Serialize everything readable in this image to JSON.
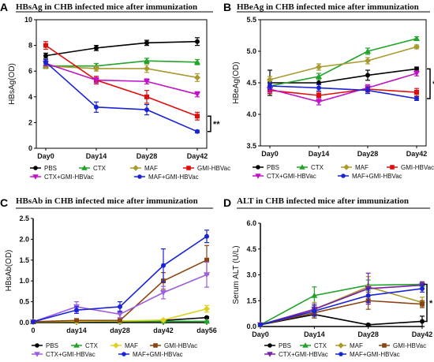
{
  "chart_data": [
    {
      "letter": "A",
      "type": "line",
      "title": "HBsAg in CHB infected mice after immunization",
      "ylabel": "HBsAg(OD)",
      "categories": [
        "Day0",
        "Day14",
        "Day28",
        "Day42"
      ],
      "yticks": [
        "0",
        "2",
        "4",
        "6",
        "8",
        "10"
      ],
      "ylim": [
        0,
        10
      ],
      "significance": "**",
      "series": [
        {
          "name": "PBS",
          "color": "#000000",
          "marker": "circle",
          "values": [
            7.2,
            7.8,
            8.2,
            8.3
          ],
          "err": [
            0.2,
            0.2,
            0.2,
            0.3
          ]
        },
        {
          "name": "CTX",
          "color": "#22a32a",
          "marker": "triangle",
          "values": [
            6.4,
            6.4,
            6.8,
            6.7
          ],
          "err": [
            0.2,
            0.2,
            0.2,
            0.2
          ]
        },
        {
          "name": "MAF",
          "color": "#a89a2e",
          "marker": "diamond",
          "values": [
            6.4,
            6.2,
            6.2,
            5.5
          ],
          "err": [
            0.2,
            0.2,
            0.3,
            0.3
          ]
        },
        {
          "name": "GMI-HBVac",
          "color": "#e00d0d",
          "marker": "square",
          "values": [
            8.0,
            5.3,
            4.0,
            2.5
          ],
          "err": [
            0.3,
            0.3,
            0.5,
            0.3
          ]
        },
        {
          "name": "CTX+GMI-HBVac",
          "color": "#c013c7",
          "marker": "triangle-down",
          "values": [
            6.6,
            5.3,
            5.2,
            4.2
          ],
          "err": [
            0.2,
            0.2,
            0.2,
            0.2
          ]
        },
        {
          "name": "MAF+GMI-HBVac",
          "color": "#1a23d6",
          "marker": "circle",
          "values": [
            6.7,
            3.2,
            3.0,
            1.3
          ],
          "err": [
            0.2,
            0.4,
            0.4,
            0.1
          ]
        }
      ]
    },
    {
      "letter": "B",
      "type": "line",
      "title": "HBeAg in CHB infected mice after immunization",
      "ylabel": "HBeAg(OD)",
      "categories": [
        "Day0",
        "Day14",
        "Day28",
        "Day42"
      ],
      "yticks": [
        "3.5",
        "4.0",
        "4.5",
        "5.0",
        "5.5"
      ],
      "ylim": [
        3.5,
        5.5
      ],
      "significance": "*",
      "series": [
        {
          "name": "PBS",
          "color": "#000000",
          "marker": "circle",
          "values": [
            4.5,
            4.5,
            4.62,
            4.72
          ],
          "err": [
            0.2,
            0.08,
            0.08,
            0.03
          ]
        },
        {
          "name": "CTX",
          "color": "#22a32a",
          "marker": "triangle",
          "values": [
            4.45,
            4.6,
            5.0,
            5.2
          ],
          "err": [
            0.05,
            0.05,
            0.05,
            0.03
          ]
        },
        {
          "name": "MAF",
          "color": "#a89a2e",
          "marker": "diamond",
          "values": [
            4.55,
            4.75,
            4.85,
            5.07
          ],
          "err": [
            0.05,
            0.05,
            0.05,
            0.03
          ]
        },
        {
          "name": "GMI-HBVac",
          "color": "#e00d0d",
          "marker": "square",
          "values": [
            4.38,
            4.3,
            4.4,
            4.35
          ],
          "err": [
            0.05,
            0.05,
            0.05,
            0.06
          ]
        },
        {
          "name": "CTX+GMI-HBVac",
          "color": "#c013c7",
          "marker": "triangle-down",
          "values": [
            4.4,
            4.2,
            4.42,
            4.65
          ],
          "err": [
            0.05,
            0.05,
            0.05,
            0.04
          ]
        },
        {
          "name": "MAF+GMI-HBVac",
          "color": "#1a23d6",
          "marker": "circle",
          "values": [
            4.45,
            4.42,
            4.38,
            4.25
          ],
          "err": [
            0.05,
            0.05,
            0.05,
            0.03
          ]
        }
      ]
    },
    {
      "letter": "C",
      "type": "line",
      "title": "HBsAb in CHB infected mice after immunization",
      "ylabel": "HBsAb(OD)",
      "categories": [
        "0",
        "day14",
        "day28",
        "day42",
        "day56"
      ],
      "yticks": [
        "0.0",
        "0.5",
        "1.0",
        "1.5",
        "2.0",
        "2.5"
      ],
      "ylim": [
        0,
        2.5
      ],
      "significance": "",
      "series": [
        {
          "name": "PBS",
          "color": "#000000",
          "marker": "circle",
          "values": [
            0.02,
            0.03,
            0.03,
            0.05,
            0.12
          ],
          "err": [
            0.01,
            0.01,
            0.01,
            0.01,
            0.02
          ]
        },
        {
          "name": "CTX",
          "color": "#22a32a",
          "marker": "triangle",
          "values": [
            0.02,
            0.03,
            0.03,
            0.03,
            0.03
          ],
          "err": [
            0.01,
            0.01,
            0.01,
            0.01,
            0.01
          ]
        },
        {
          "name": "MAF",
          "color": "#e0d020",
          "marker": "diamond",
          "values": [
            0.02,
            0.03,
            0.04,
            0.06,
            0.33
          ],
          "err": [
            0.01,
            0.01,
            0.01,
            0.02,
            0.08
          ]
        },
        {
          "name": "GMI-HBVac",
          "color": "#8b4513",
          "marker": "square",
          "values": [
            0.02,
            0.05,
            0.05,
            1.0,
            1.5
          ],
          "err": [
            0.01,
            0.02,
            0.02,
            0.2,
            0.35
          ]
        },
        {
          "name": "CTX+GMI-HBVac",
          "color": "#9b5fe0",
          "marker": "triangle-down",
          "values": [
            0.02,
            0.38,
            0.2,
            0.72,
            1.15
          ],
          "err": [
            0.01,
            0.12,
            0.08,
            0.15,
            0.3
          ]
        },
        {
          "name": "MAF+GMI-HBVac",
          "color": "#1a23d6",
          "marker": "circle",
          "values": [
            0.02,
            0.3,
            0.38,
            1.37,
            2.07
          ],
          "err": [
            0.01,
            0.08,
            0.12,
            0.4,
            0.15
          ]
        }
      ]
    },
    {
      "letter": "D",
      "type": "line",
      "title": "ALT in CHB infected mice after immunization",
      "ylabel": "Serum ALT (U/L)",
      "categories": [
        "Day0",
        "Day14",
        "Day28",
        "Day42"
      ],
      "yticks": [
        "0.0",
        "1.5",
        "3.0",
        "4.5",
        "6.0"
      ],
      "ylim": [
        0,
        6
      ],
      "significance": "*",
      "series": [
        {
          "name": "PBS",
          "color": "#000000",
          "marker": "circle",
          "values": [
            0.1,
            0.7,
            0.1,
            0.3
          ],
          "err": [
            0.05,
            0.2,
            0.05,
            0.3
          ]
        },
        {
          "name": "CTX",
          "color": "#22a32a",
          "marker": "triangle",
          "values": [
            0.1,
            1.8,
            2.4,
            2.45
          ],
          "err": [
            0.05,
            0.5,
            0.3,
            0.1
          ]
        },
        {
          "name": "MAF",
          "color": "#a89a2e",
          "marker": "diamond",
          "values": [
            0.1,
            1.0,
            2.3,
            1.4
          ],
          "err": [
            0.05,
            0.4,
            0.6,
            0.3
          ]
        },
        {
          "name": "GMI-HBVac",
          "color": "#8b4513",
          "marker": "square",
          "values": [
            0.1,
            0.8,
            1.5,
            1.3
          ],
          "err": [
            0.05,
            0.3,
            0.5,
            0.2
          ]
        },
        {
          "name": "CTX+GMI-HBVac",
          "color": "#7b1fa2",
          "marker": "triangle-down",
          "values": [
            0.1,
            1.0,
            2.2,
            2.4
          ],
          "err": [
            0.05,
            0.3,
            0.9,
            0.2
          ]
        },
        {
          "name": "MAF+GMI-HBVac",
          "color": "#1a23d6",
          "marker": "circle",
          "values": [
            0.1,
            0.9,
            1.8,
            2.2
          ],
          "err": [
            0.05,
            0.3,
            0.4,
            0.2
          ]
        }
      ]
    }
  ]
}
